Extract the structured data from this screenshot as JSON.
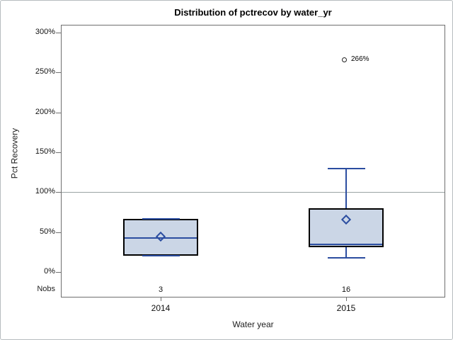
{
  "title": "Distribution of pctrecov by water_yr",
  "colors": {
    "box_fill": "#cbd6e6",
    "box_border": "#000000",
    "blue_line": "#2b4da0",
    "reference_line": "#9aa3a3",
    "axis_line": "#6f6f6f",
    "outlier_stroke": "#222222"
  },
  "chart_data": {
    "type": "boxplot",
    "title": "Distribution of pctrecov by water_yr",
    "xlabel": "Water year",
    "ylabel": "Pct Recovery",
    "ylim": [
      0,
      300
    ],
    "ytick_values": [
      0,
      50,
      100,
      150,
      200,
      250,
      300
    ],
    "ytick_labels": [
      "0%",
      "50%",
      "100%",
      "150%",
      "200%",
      "250%",
      "300%"
    ],
    "grid": "off",
    "reference_line_value": 100,
    "nobs_label": "Nobs",
    "categories": [
      "2014",
      "2015"
    ],
    "boxes": [
      {
        "category": "2014",
        "n": "3",
        "min": 20,
        "q1": 20,
        "median": 43,
        "mean": 44,
        "q3": 67,
        "max": 67,
        "outliers": []
      },
      {
        "category": "2015",
        "n": "16",
        "min": 18,
        "q1": 31,
        "median": 35,
        "mean": 66,
        "q3": 80,
        "max": 130,
        "outliers": [
          {
            "value": 266,
            "label": "266%"
          }
        ]
      }
    ]
  }
}
